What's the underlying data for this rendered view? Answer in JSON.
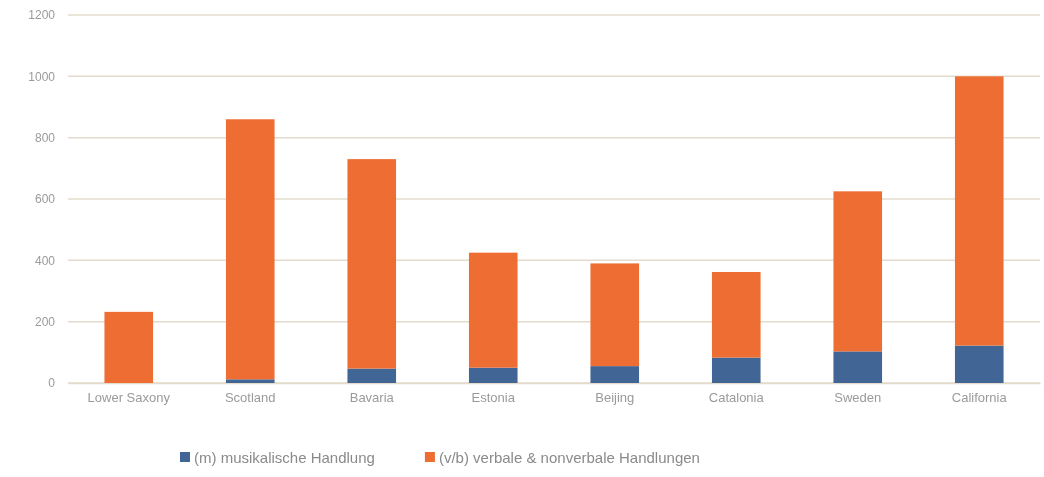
{
  "chart_data": {
    "type": "bar",
    "stacked": true,
    "categories": [
      "Lower Saxony",
      "Scotland",
      "Bavaria",
      "Estonia",
      "Beijing",
      "Catalonia",
      "Sweden",
      "California"
    ],
    "series": [
      {
        "name": "(m) musikalische Handlung",
        "color": "#416696",
        "values": [
          0,
          12,
          47,
          50,
          55,
          83,
          103,
          122
        ]
      },
      {
        "name": "(v/b) verbale & nonverbale Handlungen",
        "color": "#ee6d33",
        "values": [
          232,
          848,
          683,
          375,
          335,
          279,
          522,
          878
        ]
      }
    ],
    "ylim": [
      0,
      1200
    ],
    "yticks": [
      0,
      200,
      400,
      600,
      800,
      1000,
      1200
    ],
    "grid": "y",
    "legend": "bottom"
  }
}
